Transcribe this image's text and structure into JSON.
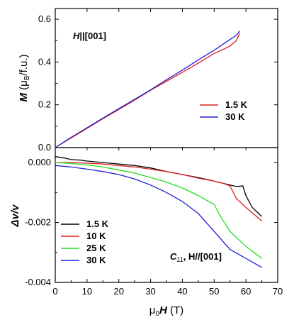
{
  "chart_data": [
    {
      "type": "line",
      "annotation": "H||[001]",
      "annotation_main": "H",
      "annotation_rest": "||[001]",
      "ylabel": "M (μB/f.u.)",
      "ylabel_main": "M",
      "ylabel_unit_open": " (μ",
      "ylabel_unit_sub": "B",
      "ylabel_unit_close": "/f.u.)",
      "xlim": [
        0,
        70
      ],
      "ylim": [
        0,
        0.65
      ],
      "yticks": [
        "0.0",
        "0.2",
        "0.4",
        "0.6"
      ],
      "legend_position": "lower-right",
      "series": [
        {
          "name": "1.5 K",
          "color": "#e02020",
          "x": [
            0,
            5,
            10,
            15,
            20,
            25,
            30,
            35,
            40,
            45,
            50,
            53,
            55,
            57,
            58
          ],
          "y": [
            0,
            0.045,
            0.09,
            0.135,
            0.178,
            0.222,
            0.268,
            0.31,
            0.352,
            0.395,
            0.44,
            0.46,
            0.475,
            0.5,
            0.535
          ]
        },
        {
          "name": "30 K",
          "color": "#2020d8",
          "x": [
            0,
            5,
            10,
            15,
            20,
            25,
            30,
            35,
            40,
            45,
            50,
            55,
            57,
            58
          ],
          "y": [
            0,
            0.048,
            0.093,
            0.138,
            0.182,
            0.226,
            0.27,
            0.317,
            0.362,
            0.41,
            0.455,
            0.505,
            0.525,
            0.545
          ]
        }
      ]
    },
    {
      "type": "line",
      "annotation": "C11, H//[001]",
      "annotation_main": "C",
      "annotation_sub": "11",
      "annotation_rest": ", H//[001]",
      "xlabel": "μ0H (T)",
      "xlabel_mu": "μ",
      "xlabel_sub": "0",
      "xlabel_main": "H",
      "xlabel_unit": " (T)",
      "ylabel": "Δv/v",
      "xlim": [
        0,
        70
      ],
      "ylim": [
        -0.004,
        0.0005
      ],
      "xticks": [
        "0",
        "10",
        "20",
        "30",
        "40",
        "50",
        "60",
        "70"
      ],
      "yticks": [
        "-0.004",
        "-0.002",
        "0.000"
      ],
      "legend_position": "lower-left",
      "series": [
        {
          "name": "1.5 K",
          "color": "#000000",
          "x": [
            0,
            3,
            5,
            8,
            10,
            15,
            20,
            25,
            30,
            35,
            40,
            45,
            50,
            55,
            57,
            59,
            60,
            62,
            65
          ],
          "y": [
            0.0002,
            0.00015,
            0.0001,
            8e-05,
            5e-05,
            0.0,
            -5e-05,
            -0.0001,
            -0.00018,
            -0.0003,
            -0.0004,
            -0.0005,
            -0.00062,
            -0.00075,
            -0.0008,
            -0.00078,
            -0.0011,
            -0.0015,
            -0.0018
          ]
        },
        {
          "name": "10 K",
          "color": "#e02020",
          "x": [
            0,
            5,
            10,
            15,
            20,
            25,
            30,
            35,
            40,
            45,
            50,
            53,
            55,
            57,
            60,
            65
          ],
          "y": [
            0.0,
            0.0,
            -2e-05,
            -5e-05,
            -0.0001,
            -0.00015,
            -0.00022,
            -0.0003,
            -0.0004,
            -0.00052,
            -0.00062,
            -0.0007,
            -0.00078,
            -0.0012,
            -0.0015,
            -0.00195
          ]
        },
        {
          "name": "25 K",
          "color": "#22dd22",
          "x": [
            0,
            5,
            10,
            15,
            20,
            25,
            30,
            35,
            40,
            45,
            50,
            52,
            55,
            60,
            65
          ],
          "y": [
            0.0,
            -3e-05,
            -8e-05,
            -0.00015,
            -0.00025,
            -0.00035,
            -0.0005,
            -0.00065,
            -0.00085,
            -0.0011,
            -0.0014,
            -0.0018,
            -0.0023,
            -0.0028,
            -0.0032
          ]
        },
        {
          "name": "30 K",
          "color": "#2020d8",
          "x": [
            0,
            5,
            10,
            15,
            20,
            25,
            30,
            35,
            40,
            45,
            50,
            55,
            60,
            65
          ],
          "y": [
            -0.0001,
            -0.00015,
            -0.00022,
            -0.0003,
            -0.0004,
            -0.00055,
            -0.00075,
            -0.001,
            -0.0013,
            -0.0017,
            -0.0023,
            -0.0029,
            -0.0032,
            -0.0035
          ]
        }
      ]
    }
  ]
}
